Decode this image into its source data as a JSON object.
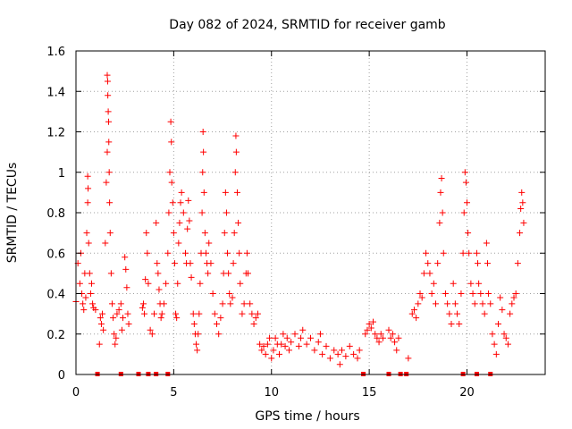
{
  "chart_data": {
    "type": "scatter",
    "title": "Day 082 of 2024, SRMTID for receiver gamb",
    "xlabel": "GPS time / hours",
    "ylabel": "SRMTID / TECUs",
    "xlim": [
      0,
      24
    ],
    "ylim": [
      0,
      1.6
    ],
    "xticks": [
      0,
      5,
      10,
      15,
      20
    ],
    "xtick_labels": [
      "0",
      "5",
      "10",
      "15",
      "20"
    ],
    "yticks": [
      0,
      0.2,
      0.4,
      0.6,
      0.8,
      1.0,
      1.2,
      1.4,
      1.6
    ],
    "ytick_labels": [
      "0",
      "0.2",
      "0.4",
      "0.6",
      "0.8",
      "1",
      "1.2",
      "1.4",
      "1.6"
    ],
    "grid": true,
    "marker_color": "#ff0000",
    "series": [
      {
        "name": "SRMTID",
        "marker": "plus",
        "points": [
          [
            0.0,
            0.36
          ],
          [
            0.1,
            0.55
          ],
          [
            0.2,
            0.45
          ],
          [
            0.25,
            0.6
          ],
          [
            0.3,
            0.4
          ],
          [
            0.35,
            0.35
          ],
          [
            0.4,
            0.32
          ],
          [
            0.45,
            0.5
          ],
          [
            0.5,
            0.38
          ],
          [
            0.55,
            0.7
          ],
          [
            0.6,
            0.85
          ],
          [
            0.6,
            0.98
          ],
          [
            0.62,
            0.92
          ],
          [
            0.65,
            0.65
          ],
          [
            0.7,
            0.5
          ],
          [
            0.75,
            0.4
          ],
          [
            0.8,
            0.45
          ],
          [
            0.85,
            0.35
          ],
          [
            0.9,
            0.33
          ],
          [
            1.0,
            0.32
          ],
          [
            1.2,
            0.15
          ],
          [
            1.25,
            0.28
          ],
          [
            1.3,
            0.25
          ],
          [
            1.35,
            0.3
          ],
          [
            1.4,
            0.22
          ],
          [
            1.5,
            0.65
          ],
          [
            1.55,
            0.95
          ],
          [
            1.6,
            1.1
          ],
          [
            1.6,
            1.48
          ],
          [
            1.62,
            1.45
          ],
          [
            1.63,
            1.38
          ],
          [
            1.65,
            1.3
          ],
          [
            1.67,
            1.25
          ],
          [
            1.68,
            1.15
          ],
          [
            1.7,
            1.0
          ],
          [
            1.72,
            0.85
          ],
          [
            1.75,
            0.7
          ],
          [
            1.8,
            0.5
          ],
          [
            1.85,
            0.35
          ],
          [
            1.9,
            0.28
          ],
          [
            1.95,
            0.2
          ],
          [
            2.0,
            0.15
          ],
          [
            2.05,
            0.18
          ],
          [
            2.1,
            0.3
          ],
          [
            2.2,
            0.32
          ],
          [
            2.3,
            0.35
          ],
          [
            2.35,
            0.22
          ],
          [
            2.4,
            0.28
          ],
          [
            2.5,
            0.58
          ],
          [
            2.55,
            0.52
          ],
          [
            2.6,
            0.43
          ],
          [
            2.65,
            0.3
          ],
          [
            2.7,
            0.25
          ],
          [
            3.4,
            0.33
          ],
          [
            3.45,
            0.35
          ],
          [
            3.5,
            0.3
          ],
          [
            3.55,
            0.47
          ],
          [
            3.6,
            0.7
          ],
          [
            3.65,
            0.6
          ],
          [
            3.7,
            0.45
          ],
          [
            3.8,
            0.22
          ],
          [
            3.9,
            0.2
          ],
          [
            4.0,
            0.3
          ],
          [
            4.1,
            0.75
          ],
          [
            4.15,
            0.55
          ],
          [
            4.2,
            0.5
          ],
          [
            4.25,
            0.42
          ],
          [
            4.3,
            0.35
          ],
          [
            4.35,
            0.28
          ],
          [
            4.4,
            0.3
          ],
          [
            4.5,
            0.35
          ],
          [
            4.6,
            0.45
          ],
          [
            4.7,
            0.6
          ],
          [
            4.75,
            0.8
          ],
          [
            4.8,
            1.0
          ],
          [
            4.85,
            1.25
          ],
          [
            4.88,
            1.15
          ],
          [
            4.9,
            0.95
          ],
          [
            4.95,
            0.85
          ],
          [
            5.0,
            0.7
          ],
          [
            5.05,
            0.55
          ],
          [
            5.1,
            0.3
          ],
          [
            5.15,
            0.28
          ],
          [
            5.2,
            0.45
          ],
          [
            5.25,
            0.65
          ],
          [
            5.3,
            0.75
          ],
          [
            5.35,
            0.85
          ],
          [
            5.4,
            0.9
          ],
          [
            5.5,
            0.8
          ],
          [
            5.6,
            0.6
          ],
          [
            5.65,
            0.55
          ],
          [
            5.7,
            0.72
          ],
          [
            5.75,
            0.86
          ],
          [
            5.8,
            0.76
          ],
          [
            5.85,
            0.55
          ],
          [
            5.9,
            0.48
          ],
          [
            6.0,
            0.3
          ],
          [
            6.05,
            0.25
          ],
          [
            6.1,
            0.2
          ],
          [
            6.15,
            0.15
          ],
          [
            6.2,
            0.12
          ],
          [
            6.25,
            0.2
          ],
          [
            6.3,
            0.3
          ],
          [
            6.35,
            0.45
          ],
          [
            6.4,
            0.6
          ],
          [
            6.45,
            0.8
          ],
          [
            6.48,
            1.0
          ],
          [
            6.5,
            1.2
          ],
          [
            6.52,
            1.1
          ],
          [
            6.55,
            0.9
          ],
          [
            6.6,
            0.7
          ],
          [
            6.65,
            0.6
          ],
          [
            6.7,
            0.55
          ],
          [
            6.75,
            0.5
          ],
          [
            6.8,
            0.65
          ],
          [
            6.9,
            0.55
          ],
          [
            7.0,
            0.4
          ],
          [
            7.1,
            0.3
          ],
          [
            7.2,
            0.25
          ],
          [
            7.3,
            0.2
          ],
          [
            7.4,
            0.28
          ],
          [
            7.5,
            0.35
          ],
          [
            7.55,
            0.5
          ],
          [
            7.6,
            0.7
          ],
          [
            7.65,
            0.9
          ],
          [
            7.7,
            0.8
          ],
          [
            7.75,
            0.6
          ],
          [
            7.8,
            0.5
          ],
          [
            7.85,
            0.4
          ],
          [
            7.9,
            0.35
          ],
          [
            8.0,
            0.38
          ],
          [
            8.05,
            0.55
          ],
          [
            8.1,
            0.7
          ],
          [
            8.15,
            1.0
          ],
          [
            8.18,
            1.18
          ],
          [
            8.2,
            1.1
          ],
          [
            8.25,
            0.9
          ],
          [
            8.3,
            0.75
          ],
          [
            8.35,
            0.6
          ],
          [
            8.4,
            0.45
          ],
          [
            8.5,
            0.3
          ],
          [
            8.6,
            0.35
          ],
          [
            8.7,
            0.5
          ],
          [
            8.75,
            0.6
          ],
          [
            8.8,
            0.5
          ],
          [
            8.9,
            0.35
          ],
          [
            9.0,
            0.3
          ],
          [
            9.1,
            0.25
          ],
          [
            9.2,
            0.28
          ],
          [
            9.3,
            0.3
          ],
          [
            9.4,
            0.15
          ],
          [
            9.5,
            0.12
          ],
          [
            9.6,
            0.14
          ],
          [
            9.7,
            0.1
          ],
          [
            9.8,
            0.15
          ],
          [
            9.9,
            0.18
          ],
          [
            10.0,
            0.08
          ],
          [
            10.1,
            0.12
          ],
          [
            10.2,
            0.18
          ],
          [
            10.3,
            0.15
          ],
          [
            10.4,
            0.1
          ],
          [
            10.5,
            0.15
          ],
          [
            10.6,
            0.2
          ],
          [
            10.7,
            0.14
          ],
          [
            10.8,
            0.18
          ],
          [
            10.9,
            0.12
          ],
          [
            11.0,
            0.16
          ],
          [
            11.2,
            0.2
          ],
          [
            11.4,
            0.14
          ],
          [
            11.5,
            0.18
          ],
          [
            11.6,
            0.22
          ],
          [
            11.8,
            0.15
          ],
          [
            12.0,
            0.18
          ],
          [
            12.2,
            0.12
          ],
          [
            12.4,
            0.16
          ],
          [
            12.5,
            0.2
          ],
          [
            12.6,
            0.1
          ],
          [
            12.8,
            0.14
          ],
          [
            13.0,
            0.08
          ],
          [
            13.2,
            0.12
          ],
          [
            13.4,
            0.1
          ],
          [
            13.5,
            0.05
          ],
          [
            13.6,
            0.12
          ],
          [
            13.8,
            0.09
          ],
          [
            14.0,
            0.14
          ],
          [
            14.2,
            0.1
          ],
          [
            14.4,
            0.08
          ],
          [
            14.5,
            0.12
          ],
          [
            14.8,
            0.2
          ],
          [
            14.9,
            0.22
          ],
          [
            15.0,
            0.25
          ],
          [
            15.1,
            0.23
          ],
          [
            15.2,
            0.26
          ],
          [
            15.3,
            0.2
          ],
          [
            15.4,
            0.18
          ],
          [
            15.5,
            0.16
          ],
          [
            15.6,
            0.2
          ],
          [
            15.7,
            0.18
          ],
          [
            16.0,
            0.22
          ],
          [
            16.1,
            0.18
          ],
          [
            16.2,
            0.2
          ],
          [
            16.3,
            0.16
          ],
          [
            16.4,
            0.12
          ],
          [
            16.5,
            0.18
          ],
          [
            17.0,
            0.08
          ],
          [
            17.2,
            0.3
          ],
          [
            17.3,
            0.32
          ],
          [
            17.4,
            0.28
          ],
          [
            17.5,
            0.35
          ],
          [
            17.6,
            0.4
          ],
          [
            17.7,
            0.38
          ],
          [
            17.8,
            0.5
          ],
          [
            17.9,
            0.6
          ],
          [
            18.0,
            0.55
          ],
          [
            18.1,
            0.5
          ],
          [
            18.2,
            0.4
          ],
          [
            18.3,
            0.45
          ],
          [
            18.4,
            0.35
          ],
          [
            18.5,
            0.55
          ],
          [
            18.6,
            0.75
          ],
          [
            18.65,
            0.9
          ],
          [
            18.7,
            0.97
          ],
          [
            18.75,
            0.8
          ],
          [
            18.8,
            0.6
          ],
          [
            18.9,
            0.4
          ],
          [
            19.0,
            0.35
          ],
          [
            19.1,
            0.3
          ],
          [
            19.2,
            0.25
          ],
          [
            19.3,
            0.45
          ],
          [
            19.4,
            0.35
          ],
          [
            19.5,
            0.3
          ],
          [
            19.6,
            0.25
          ],
          [
            19.7,
            0.4
          ],
          [
            19.8,
            0.6
          ],
          [
            19.85,
            0.8
          ],
          [
            19.9,
            1.0
          ],
          [
            19.95,
            0.95
          ],
          [
            20.0,
            0.85
          ],
          [
            20.05,
            0.7
          ],
          [
            20.1,
            0.6
          ],
          [
            20.2,
            0.45
          ],
          [
            20.3,
            0.4
          ],
          [
            20.4,
            0.35
          ],
          [
            20.5,
            0.6
          ],
          [
            20.55,
            0.55
          ],
          [
            20.6,
            0.45
          ],
          [
            20.7,
            0.4
          ],
          [
            20.8,
            0.35
          ],
          [
            20.9,
            0.3
          ],
          [
            21.0,
            0.65
          ],
          [
            21.05,
            0.55
          ],
          [
            21.1,
            0.4
          ],
          [
            21.2,
            0.35
          ],
          [
            21.3,
            0.2
          ],
          [
            21.4,
            0.15
          ],
          [
            21.5,
            0.1
          ],
          [
            21.6,
            0.25
          ],
          [
            21.7,
            0.38
          ],
          [
            21.8,
            0.32
          ],
          [
            21.9,
            0.2
          ],
          [
            22.0,
            0.18
          ],
          [
            22.1,
            0.15
          ],
          [
            22.2,
            0.3
          ],
          [
            22.3,
            0.35
          ],
          [
            22.4,
            0.38
          ],
          [
            22.5,
            0.4
          ],
          [
            22.6,
            0.55
          ],
          [
            22.7,
            0.7
          ],
          [
            22.75,
            0.82
          ],
          [
            22.8,
            0.9
          ],
          [
            22.85,
            0.85
          ],
          [
            22.9,
            0.75
          ]
        ]
      }
    ],
    "zero_markers_x": [
      1.1,
      2.3,
      3.2,
      3.7,
      4.1,
      4.7,
      14.7,
      16.0,
      16.6,
      16.9,
      19.8,
      20.5,
      21.2
    ]
  }
}
